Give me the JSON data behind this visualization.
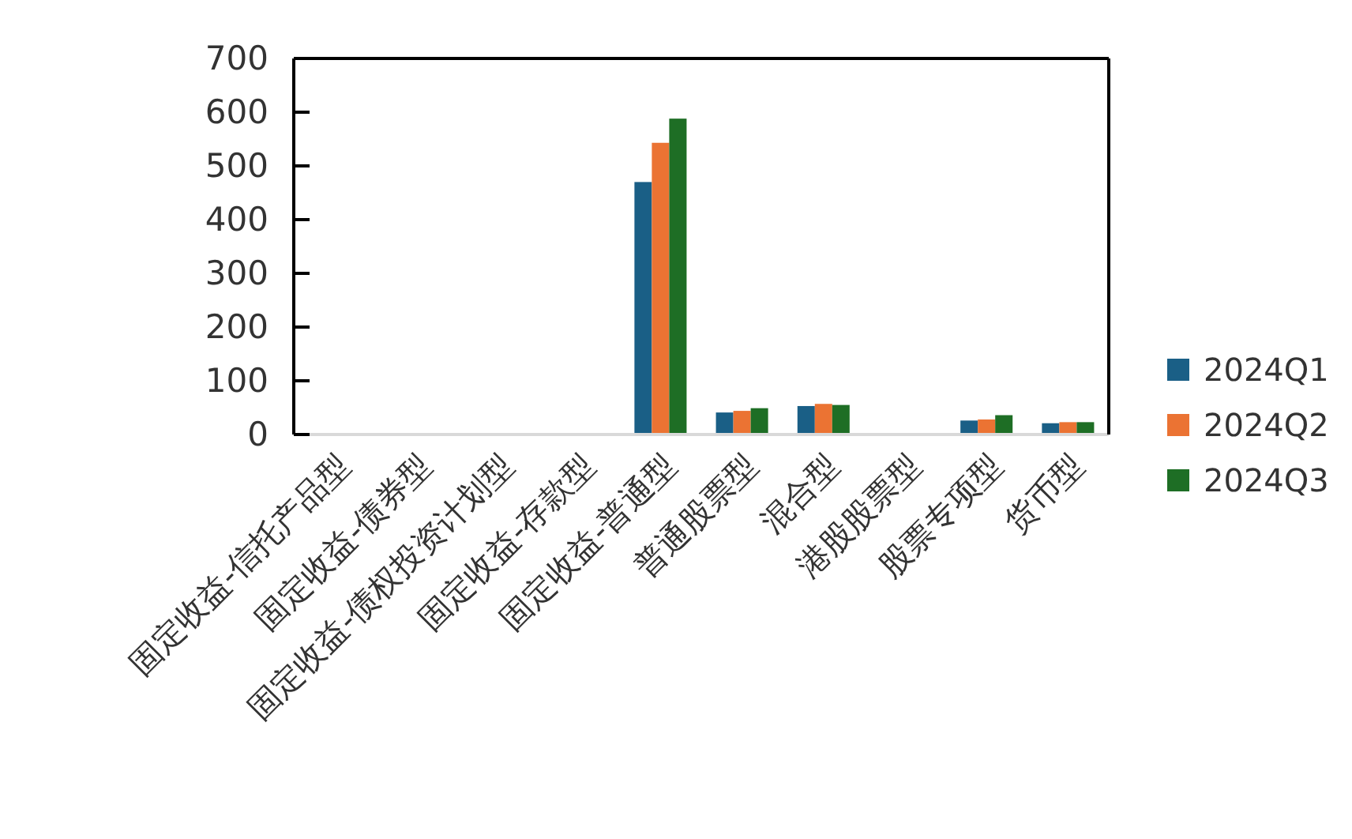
{
  "chart_data": {
    "type": "bar",
    "categories": [
      "固定收益-信托产品型",
      "固定收益-债券型",
      "固定收益-债权投资计划型",
      "固定收益-存款型",
      "固定收益-普通型",
      "普通股票型",
      "混合型",
      "港股股票型",
      "股票专项型",
      "货币型"
    ],
    "series": [
      {
        "name": "2024Q1",
        "color": "#1a5f86",
        "values": [
          null,
          null,
          null,
          null,
          470,
          41,
          53,
          null,
          26,
          21
        ]
      },
      {
        "name": "2024Q2",
        "color": "#eb7333",
        "values": [
          null,
          null,
          null,
          null,
          543,
          44,
          57,
          null,
          28,
          23
        ]
      },
      {
        "name": "2024Q3",
        "color": "#1e6e25",
        "values": [
          null,
          null,
          null,
          null,
          588,
          49,
          55,
          null,
          36,
          23
        ]
      }
    ],
    "ylim": [
      0,
      700
    ],
    "yticks": [
      0,
      100,
      200,
      300,
      400,
      500,
      600,
      700
    ],
    "grid": false,
    "legend": "right"
  }
}
